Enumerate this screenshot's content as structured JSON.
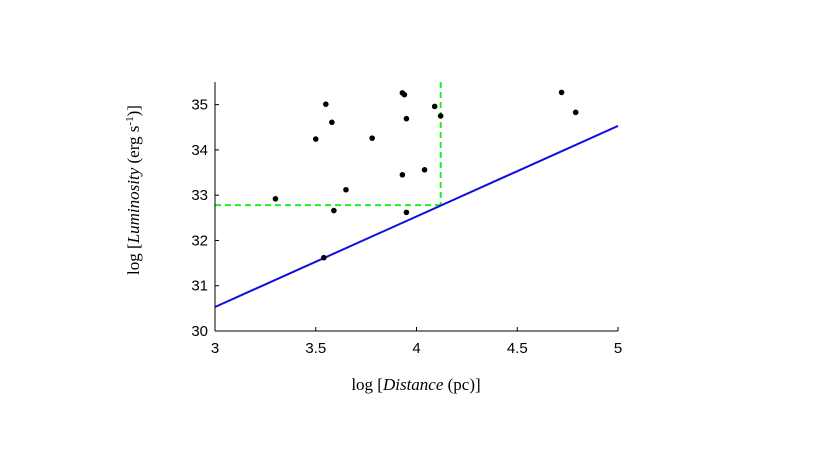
{
  "chart_data": {
    "type": "scatter",
    "xlabel": {
      "prefix": "log [",
      "italic": "Distance",
      "suffix": " (pc)]"
    },
    "ylabel": {
      "prefix": "log [",
      "italic": "Luminosity",
      "suffix": " (erg s",
      "superscript": "-1",
      "end": ")]"
    },
    "xlim": [
      3,
      5
    ],
    "ylim": [
      30,
      35.5
    ],
    "xticks": [
      3,
      3.5,
      4,
      4.5,
      5
    ],
    "xtick_labels": [
      "3",
      "3.5",
      "4",
      "4.5",
      "5"
    ],
    "yticks": [
      30,
      31,
      32,
      33,
      34,
      35
    ],
    "ytick_labels": [
      "30",
      "31",
      "32",
      "33",
      "34",
      "35"
    ],
    "grid": false,
    "points": [
      {
        "x": 3.3,
        "y": 32.92
      },
      {
        "x": 3.5,
        "y": 34.24
      },
      {
        "x": 3.54,
        "y": 31.62
      },
      {
        "x": 3.55,
        "y": 35.01
      },
      {
        "x": 3.58,
        "y": 34.61
      },
      {
        "x": 3.59,
        "y": 32.66
      },
      {
        "x": 3.65,
        "y": 33.12
      },
      {
        "x": 3.78,
        "y": 34.26
      },
      {
        "x": 3.93,
        "y": 35.26
      },
      {
        "x": 3.94,
        "y": 35.22
      },
      {
        "x": 3.93,
        "y": 33.45
      },
      {
        "x": 3.95,
        "y": 34.69
      },
      {
        "x": 3.95,
        "y": 32.62
      },
      {
        "x": 4.04,
        "y": 33.56
      },
      {
        "x": 4.09,
        "y": 34.96
      },
      {
        "x": 4.12,
        "y": 34.75
      },
      {
        "x": 4.72,
        "y": 35.27
      },
      {
        "x": 4.79,
        "y": 34.83
      }
    ],
    "limit_line": {
      "x": [
        3,
        5
      ],
      "y": [
        30.53,
        34.53
      ],
      "color": "#1010dd"
    },
    "threshold": {
      "x": 4.12,
      "y": 32.78,
      "color": "#22ee22"
    },
    "marker_color": "#000000"
  }
}
